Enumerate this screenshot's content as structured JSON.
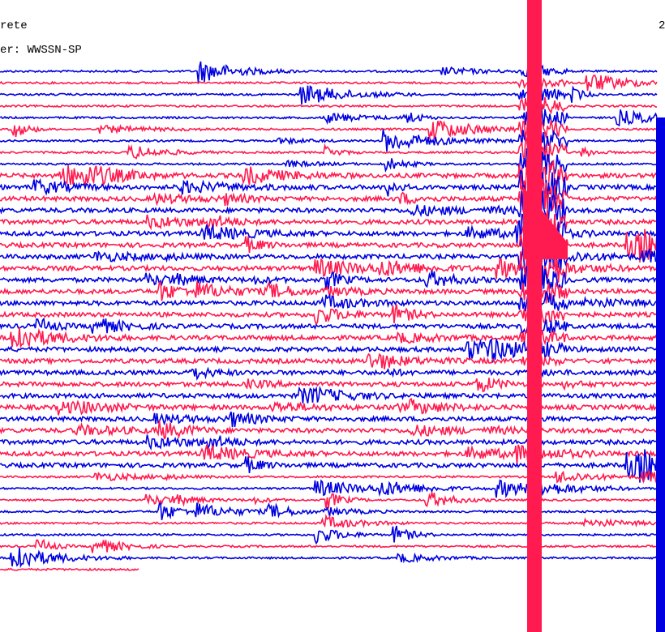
{
  "header": {
    "station": "rete",
    "filter": "er: WWSSN-SP",
    "corner": "2"
  }
}
